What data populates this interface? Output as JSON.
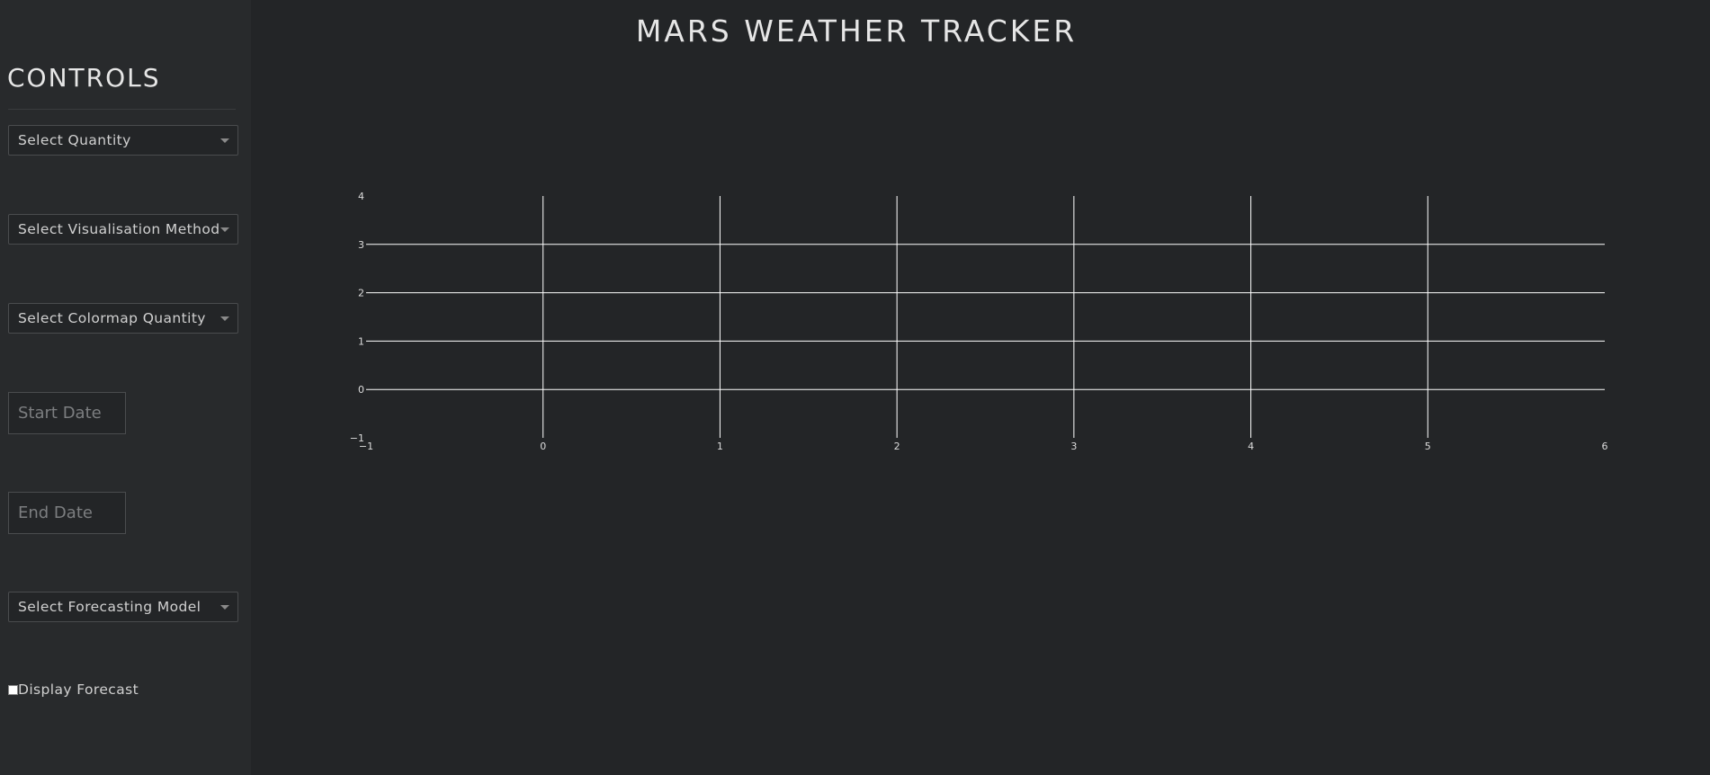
{
  "header": {
    "title": "MARS WEATHER TRACKER"
  },
  "sidebar": {
    "heading": "CONTROLS",
    "dropdowns": {
      "quantity": "Select Quantity",
      "visualisation": "Select Visualisation Method",
      "colormap": "Select Colormap Quantity",
      "forecasting": "Select Forecasting Model"
    },
    "start_date_placeholder": "Start Date",
    "end_date_placeholder": "End Date",
    "forecast_checkbox": {
      "label": "Display Forecast",
      "checked": false
    }
  },
  "chart_data": {
    "type": "scatter",
    "title": "",
    "xlabel": "",
    "ylabel": "",
    "xlim": [
      -1,
      6
    ],
    "ylim": [
      -1,
      4
    ],
    "x_ticks": [
      "−1",
      "0",
      "1",
      "2",
      "3",
      "4",
      "5",
      "6"
    ],
    "y_ticks": [
      "−1",
      "0",
      "1",
      "2",
      "3",
      "4"
    ],
    "grid": true,
    "series": []
  },
  "colors": {
    "background": "#232527",
    "sidebar": "#282a2c",
    "text": "#e6e6e6",
    "grid": "#ffffff"
  }
}
